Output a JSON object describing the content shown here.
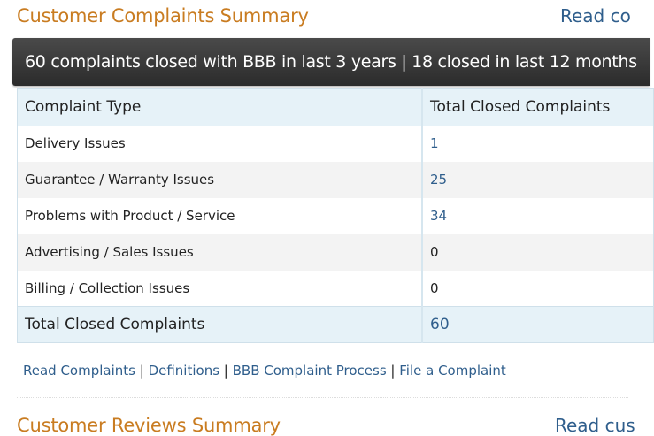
{
  "complaints_section": {
    "title": "Customer Complaints Summary",
    "read_link": "Read co",
    "summary": "60 complaints closed with BBB in last 3 years | 18 closed in last 12 months",
    "table": {
      "headers": [
        "Complaint Type",
        "Total Closed Complaints"
      ],
      "rows": [
        {
          "type": "Delivery Issues",
          "count": "1"
        },
        {
          "type": "Guarantee / Warranty Issues",
          "count": "25"
        },
        {
          "type": "Problems with Product / Service",
          "count": "34"
        },
        {
          "type": "Advertising / Sales Issues",
          "count": "0"
        },
        {
          "type": "Billing / Collection Issues",
          "count": "0"
        }
      ],
      "total_label": "Total Closed Complaints",
      "total_value": "60"
    },
    "links": {
      "read_complaints": "Read Complaints",
      "definitions": "Definitions",
      "process": "BBB Complaint Process",
      "file": "File a Complaint",
      "separator": " | "
    }
  },
  "reviews_section": {
    "title": "Customer Reviews Summary",
    "read_link": "Read cus"
  },
  "colors": {
    "title_orange": "#c97c21",
    "link_blue": "#2f5e8c",
    "header_bg": "#e6f2f8",
    "bar_dark": "#2b2b2b"
  }
}
